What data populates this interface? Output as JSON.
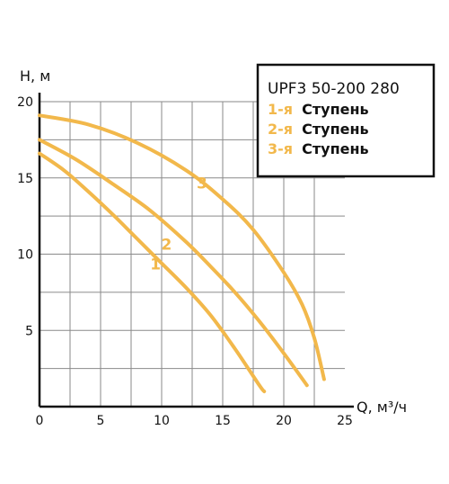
{
  "chart_data": {
    "type": "line",
    "xlabel": "Q, м³/ч",
    "ylabel": "H, м",
    "xlim": [
      0,
      25
    ],
    "ylim": [
      0,
      20
    ],
    "x_ticks": [
      "0",
      "5",
      "10",
      "15",
      "20",
      "25"
    ],
    "y_ticks": [
      "5",
      "10",
      "15",
      "20"
    ],
    "grid": true,
    "line_color": "#f2b84b",
    "legend": {
      "title": "UPF3 50-200 280",
      "placement": "top-right",
      "entries": [
        {
          "num": "1-я",
          "text": "Ступень"
        },
        {
          "num": "2-я",
          "text": "Ступень"
        },
        {
          "num": "3-я",
          "text": "Ступень"
        }
      ]
    },
    "series": [
      {
        "label": "1",
        "label_at": [
          9.5,
          9.0
        ],
        "points": [
          [
            0,
            16.6
          ],
          [
            2,
            15.5
          ],
          [
            4,
            14.1
          ],
          [
            6,
            12.6
          ],
          [
            8,
            11.0
          ],
          [
            10,
            9.4
          ],
          [
            12,
            7.8
          ],
          [
            14,
            6.0
          ],
          [
            16,
            3.8
          ],
          [
            18,
            1.4
          ],
          [
            18.4,
            1.0
          ]
        ]
      },
      {
        "label": "2",
        "label_at": [
          10.4,
          10.3
        ],
        "points": [
          [
            0,
            17.5
          ],
          [
            3,
            16.2
          ],
          [
            6,
            14.6
          ],
          [
            9,
            12.9
          ],
          [
            12,
            10.8
          ],
          [
            14,
            9.2
          ],
          [
            16,
            7.5
          ],
          [
            18,
            5.6
          ],
          [
            20,
            3.5
          ],
          [
            21.9,
            1.4
          ]
        ]
      },
      {
        "label": "3",
        "label_at": [
          13.3,
          14.3
        ],
        "points": [
          [
            0,
            19.1
          ],
          [
            4,
            18.5
          ],
          [
            8,
            17.3
          ],
          [
            12,
            15.5
          ],
          [
            15,
            13.6
          ],
          [
            17.5,
            11.6
          ],
          [
            20,
            8.8
          ],
          [
            21.5,
            6.7
          ],
          [
            22.5,
            4.5
          ],
          [
            23.3,
            1.8
          ]
        ]
      }
    ]
  }
}
